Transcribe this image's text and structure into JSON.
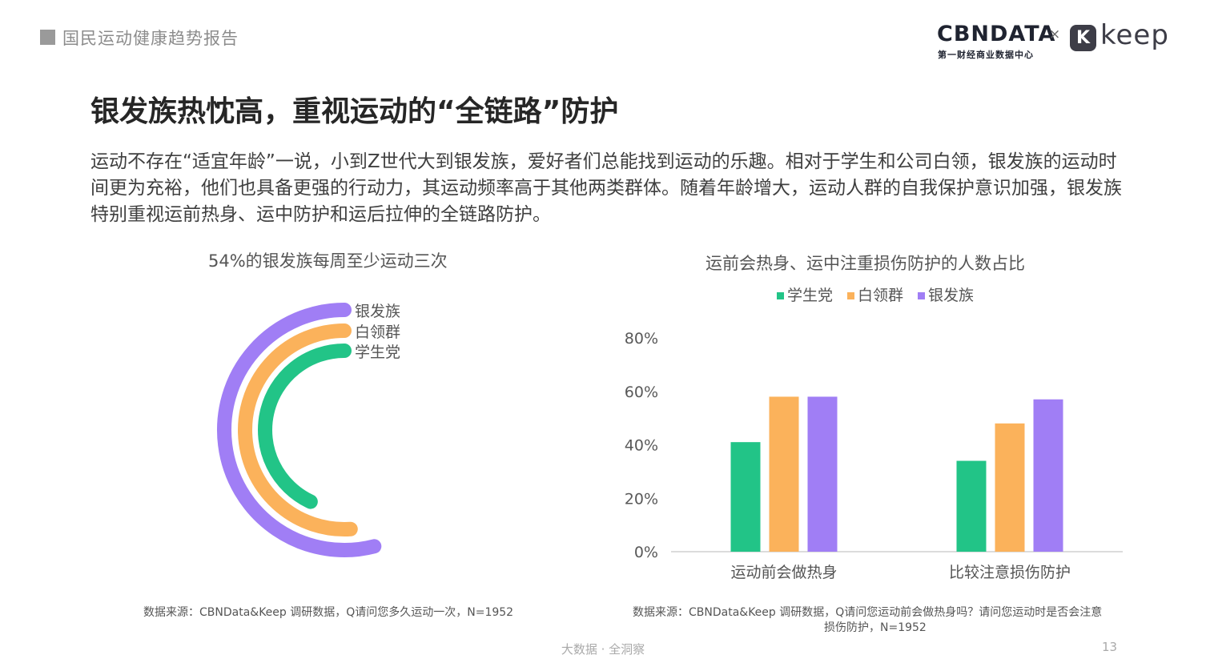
{
  "header": {
    "report_title": "国民运动健康趋势报告",
    "logo_cbn": "CBNDATA",
    "logo_cbn_sub": "第一财经商业数据中心",
    "logo_times": "×",
    "logo_k": "K",
    "logo_keep": "keep"
  },
  "main": {
    "title": "银发族热忱高，重视运动的“全链路”防护",
    "body": "运动不存在“适宜年龄”一说，小到Z世代大到银发族，爱好者们总能找到运动的乐趣。相对于学生和公司白领，银发族的运动时间更为充裕，他们也具备更强的行动力，其运动频率高于其他两类群体。随着年龄增大，运动人群的自我保护意识加强，银发族特别重视运前热身、运中防护和运后拉伸的全链路防护。"
  },
  "colors": {
    "student": "#22c487",
    "whitecollar": "#fbb25b",
    "silver": "#a07ef5"
  },
  "chart_data": [
    {
      "type": "radial-bar",
      "title": "54%的银发族每周至少运动三次",
      "unit": "%",
      "series": [
        {
          "name": "银发族",
          "value": 54
        },
        {
          "name": "白领群",
          "value": 51
        },
        {
          "name": "学生党",
          "value": 43
        }
      ],
      "source": "数据来源：CBNData&Keep 调研数据，Q请问您多久运动一次，N=1952"
    },
    {
      "type": "bar",
      "title": "运前会热身、运中注重损伤防护的人数占比",
      "categories": [
        "运动前会做热身",
        "比较注意损伤防护"
      ],
      "series": [
        {
          "name": "学生党",
          "values": [
            41,
            34
          ]
        },
        {
          "name": "白领群",
          "values": [
            58,
            48
          ]
        },
        {
          "name": "银发族",
          "values": [
            58,
            57
          ]
        }
      ],
      "ylim": [
        0,
        80
      ],
      "yticks": [
        "0%",
        "20%",
        "40%",
        "60%",
        "80%"
      ],
      "legend": "top",
      "grid": false,
      "source_line1": "数据来源：CBNData&Keep 调研数据，Q请问您运动前会做热身吗？请问您运动时是否会注意",
      "source_line2": "损伤防护，N=1952"
    }
  ],
  "footer": {
    "center": "大数据 · 全洞察",
    "page": "13"
  }
}
